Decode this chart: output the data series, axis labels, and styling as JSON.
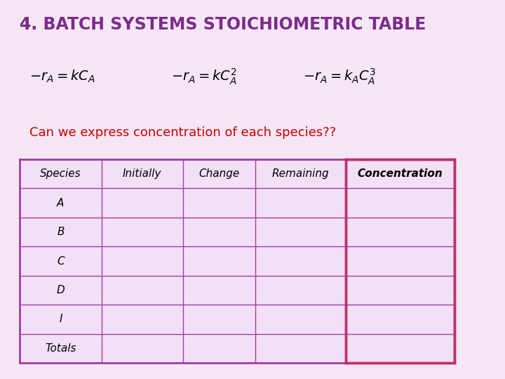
{
  "title": "4. Batch Systems Stoichiometric Table",
  "title_color": "#7B2D8B",
  "bg_color": "#FFFFFF",
  "slide_bg": "#F5E6F5",
  "question_text": "Can we express concentration of each species??",
  "question_color": "#CC0000",
  "table_header": [
    "Species",
    "Initially",
    "Change",
    "Remaining",
    "Concentration"
  ],
  "table_rows": [
    "A",
    "B",
    "C",
    "D",
    "I",
    "Totals"
  ],
  "table_bg": "#F2E0F7",
  "table_border_color": "#A040A0",
  "header_bg": "#F2E0F7",
  "concentration_col_border": "#C0306A",
  "equations": [
    "-r_A = kC_A",
    "-r_A = kC_A^2",
    "-r_A = k_AC_A^3"
  ]
}
